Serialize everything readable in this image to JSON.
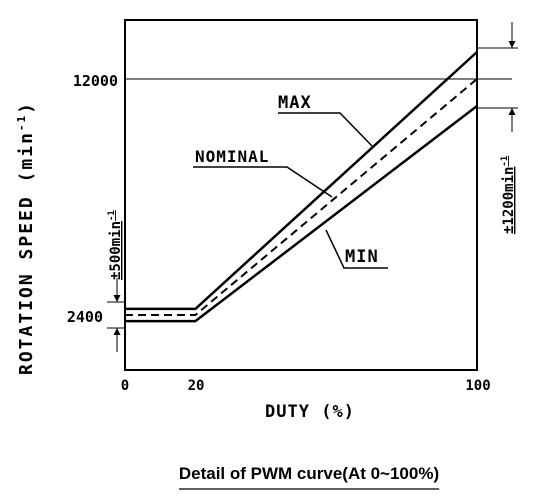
{
  "chart_data": {
    "type": "line",
    "caption": "Detail of PWM curve(At 0~100%)",
    "xlabel": "DUTY (%)",
    "ylabel_main": "ROTATION SPEED (min",
    "ylabel_sup": "-1",
    "ylabel_close": ")",
    "xlim": [
      0,
      100
    ],
    "x_ticks": [
      "0",
      "20",
      "100"
    ],
    "y_ticks": [
      "2400",
      "12000"
    ],
    "series": [
      {
        "name": "MAX",
        "x": [
          0,
          20,
          100
        ],
        "y": [
          2650,
          2650,
          13100
        ]
      },
      {
        "name": "NOMINAL",
        "x": [
          0,
          20,
          100
        ],
        "y": [
          2400,
          2400,
          12000
        ]
      },
      {
        "name": "MIN",
        "x": [
          0,
          20,
          100
        ],
        "y": [
          2150,
          2150,
          10900
        ]
      }
    ],
    "tolerance_low": {
      "text": "±500min",
      "sup": "-1"
    },
    "tolerance_high": {
      "text": "±1200min",
      "sup": "-1"
    }
  }
}
